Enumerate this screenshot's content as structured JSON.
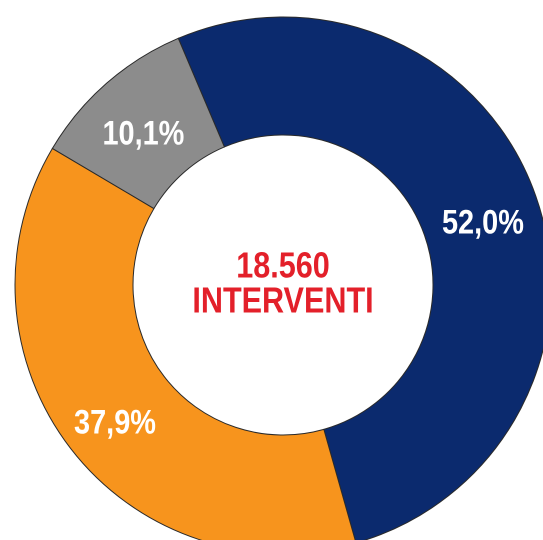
{
  "chart_data": {
    "type": "donut",
    "categories": [
      null,
      null,
      null
    ],
    "values": [
      52.0,
      37.9,
      10.1
    ],
    "value_labels": [
      "52,0%",
      "37,9%",
      "10,1%"
    ],
    "colors": [
      "#0b2a6e",
      "#f7941d",
      "#8c8c8c"
    ],
    "annotations": [
      "18.560",
      "INTERVENTI"
    ],
    "annotation_color": "#e3202a"
  }
}
